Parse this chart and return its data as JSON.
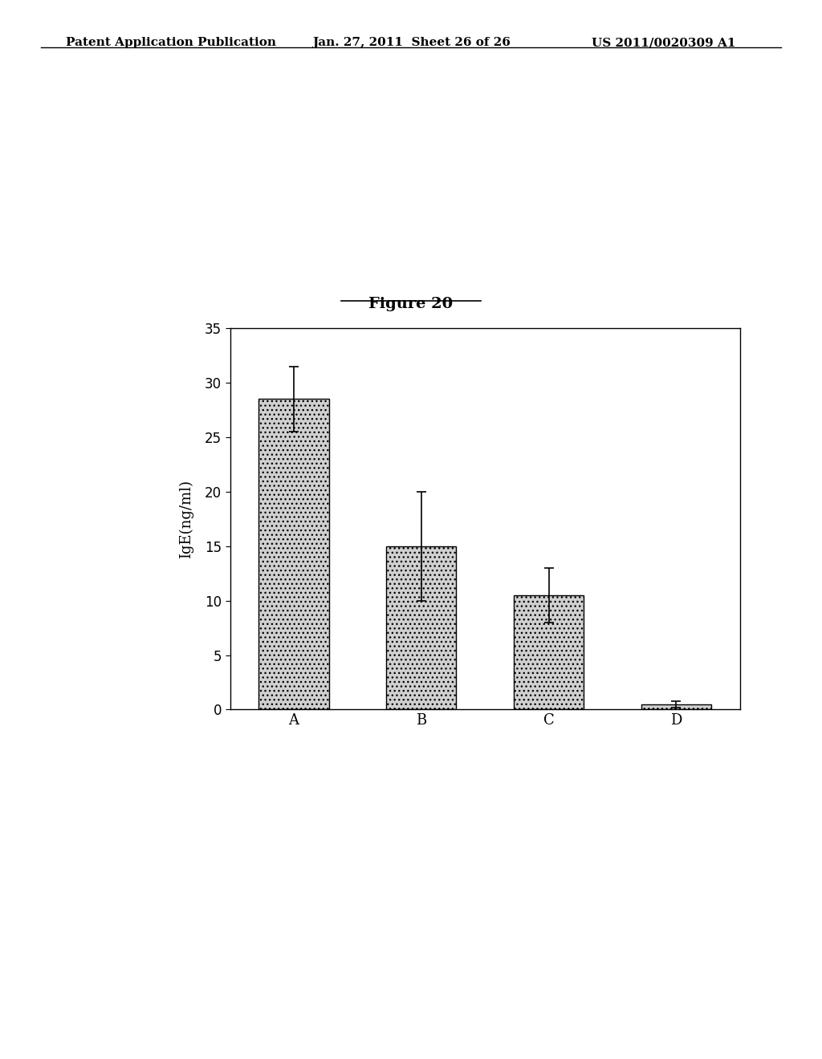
{
  "title": "Figure 20",
  "xlabel_categories": [
    "A",
    "B",
    "C",
    "D"
  ],
  "values": [
    28.5,
    15.0,
    10.5,
    0.5
  ],
  "errors": [
    3.0,
    5.0,
    2.5,
    0.3
  ],
  "ylabel": "IgE(ng/ml)",
  "ylim": [
    0,
    35
  ],
  "yticks": [
    0,
    5,
    10,
    15,
    20,
    25,
    30,
    35
  ],
  "bar_color": "#d0d0d0",
  "bar_edge_color": "#000000",
  "background_color": "#ffffff",
  "header_left": "Patent Application Publication",
  "header_mid": "Jan. 27, 2011  Sheet 26 of 26",
  "header_right": "US 2011/0020309 A1",
  "header_fontsize": 11,
  "title_fontsize": 14,
  "axis_label_fontsize": 13,
  "tick_fontsize": 12,
  "category_fontsize": 13
}
